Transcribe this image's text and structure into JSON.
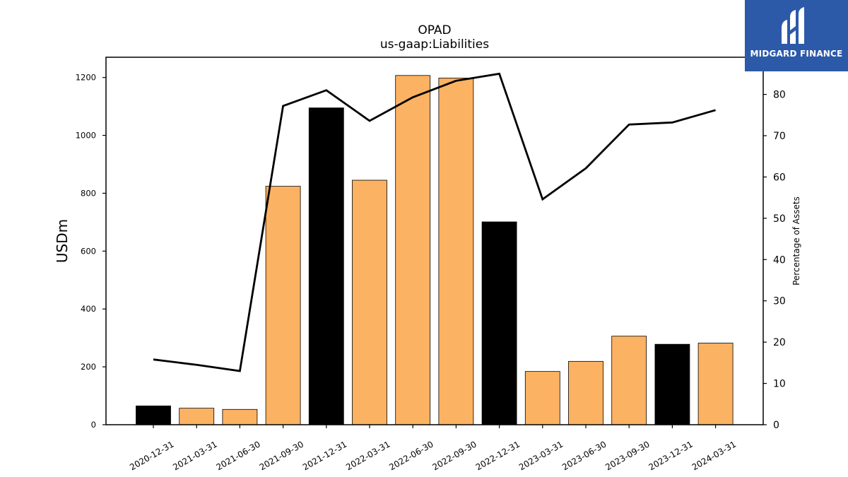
{
  "brand": {
    "name": "MIDGARD FINANCE",
    "bg_color": "#2c5aa9",
    "icon": "midgard-logo-icon"
  },
  "chart_data": {
    "type": "bar",
    "title": "OPAD",
    "subtitle": "us-gaap:Liabilities",
    "ylabel": "USDm",
    "y2label": "Percentage of Assets",
    "ylim": [
      0,
      1270
    ],
    "y2lim": [
      0,
      89
    ],
    "yticks": [
      0,
      200,
      400,
      600,
      800,
      1000,
      1200
    ],
    "y2ticks": [
      0,
      10,
      20,
      30,
      40,
      50,
      60,
      70,
      80
    ],
    "grid": false,
    "categories": [
      "2020-12-31",
      "2021-03-31",
      "2021-06-30",
      "2021-09-30",
      "2021-12-31",
      "2022-03-31",
      "2022-06-30",
      "2022-09-30",
      "2022-12-31",
      "2023-03-31",
      "2023-06-30",
      "2023-09-30",
      "2023-12-31",
      "2024-03-31"
    ],
    "series": [
      {
        "type": "bar",
        "axis": "left",
        "values": [
          65,
          57,
          53,
          824,
          1095,
          845,
          1207,
          1198,
          701,
          184,
          219,
          306,
          278,
          282
        ],
        "colors": [
          "#000000",
          "#fbb262",
          "#fbb262",
          "#fbb262",
          "#000000",
          "#fbb262",
          "#fbb262",
          "#fbb262",
          "#000000",
          "#fbb262",
          "#fbb262",
          "#fbb262",
          "#000000",
          "#fbb262"
        ]
      },
      {
        "type": "line",
        "axis": "right",
        "color": "#000000",
        "values": [
          15.8,
          14.5,
          13.0,
          77.2,
          81.0,
          73.6,
          79.3,
          83.3,
          85.0,
          54.6,
          62.1,
          72.7,
          73.2,
          76.2
        ]
      }
    ]
  }
}
